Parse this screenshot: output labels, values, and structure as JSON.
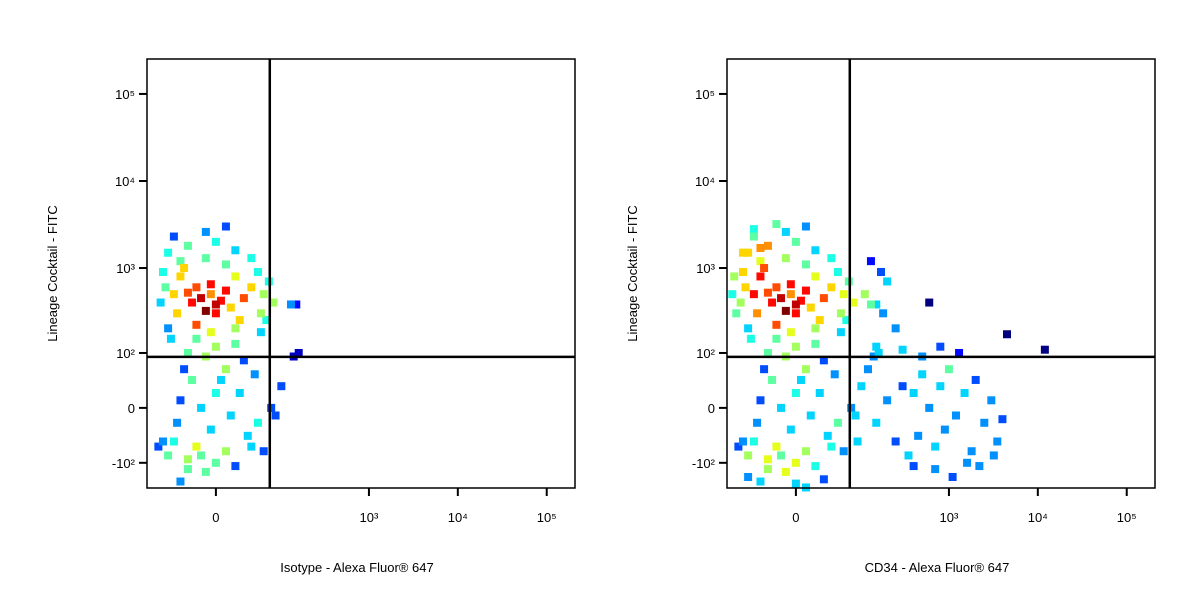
{
  "chart_data": [
    {
      "type": "scatter",
      "x_label": "Isotype - Alexa Fluor® 647",
      "y_label": "Lineage Cocktail - FITC",
      "xscale": "biexponential",
      "yscale": "biexponential",
      "xlim": [
        -110,
        208000
      ],
      "ylim": [
        -203,
        252000
      ],
      "xticks": [
        0,
        {
          "value": 1000,
          "label": "10³"
        },
        {
          "value": 10000,
          "label": "10⁴"
        },
        {
          "value": 100000,
          "label": "10⁵"
        }
      ],
      "yticks": [
        {
          "value": -100,
          "label": "-10²"
        },
        0,
        {
          "value": 100,
          "label": "10²"
        },
        {
          "value": 1000,
          "label": "10³"
        },
        {
          "value": 10000,
          "label": "10⁴"
        },
        {
          "value": 100000,
          "label": "10⁵"
        }
      ],
      "gates": {
        "x": 72,
        "y": 89
      },
      "x": [
        -15,
        -5,
        0,
        -20,
        5,
        -10,
        10,
        -25,
        -5,
        15,
        -30,
        0,
        -40,
        20,
        -45,
        30,
        -35,
        10,
        25,
        -50,
        40,
        -10,
        -20,
        20,
        -60,
        -30,
        0,
        20,
        -50,
        -10,
        10,
        -40,
        40,
        50,
        -70,
        -65,
        60,
        -75,
        55,
        70,
        80,
        130,
        150,
        65,
        -20,
        0,
        -10,
        10,
        -25,
        0,
        -15,
        15,
        -5,
        -30,
        20,
        -35,
        30,
        -40,
        25,
        -45,
        35,
        -20,
        10,
        -50,
        40,
        -30,
        0,
        20,
        -10,
        -60,
        50,
        45,
        -55,
        55,
        60,
        -5,
        5,
        -15,
        -70,
        75,
        85,
        -80,
        -40,
        -30,
        100,
        140,
        160,
        -60
      ],
      "values": [
        450,
        500,
        380,
        600,
        420,
        320,
        550,
        400,
        650,
        350,
        520,
        300,
        800,
        800,
        300,
        450,
        1000,
        1100,
        250,
        500,
        600,
        1300,
        220,
        200,
        1500,
        1800,
        2000,
        1600,
        2300,
        2600,
        3000,
        1200,
        1300,
        900,
        900,
        600,
        500,
        400,
        300,
        700,
        400,
        380,
        380,
        250,
        150,
        120,
        90,
        60,
        40,
        20,
        0,
        -10,
        -30,
        100,
        130,
        60,
        80,
        10,
        20,
        -20,
        -40,
        -60,
        -70,
        -50,
        -60,
        -90,
        -100,
        -110,
        -130,
        -80,
        -20,
        50,
        150,
        180,
        -70,
        180,
        40,
        -80,
        -50,
        0,
        -10,
        -60,
        -170,
        -120,
        30,
        90,
        100,
        200
      ]
    },
    {
      "type": "scatter",
      "x_label": "CD34 - Alexa Fluor® 647",
      "y_label": "Lineage Cocktail - FITC",
      "xscale": "biexponential",
      "yscale": "biexponential",
      "xlim": [
        -110,
        208000
      ],
      "ylim": [
        -203,
        252000
      ],
      "xticks": [
        0,
        {
          "value": 1000,
          "label": "10³"
        },
        {
          "value": 10000,
          "label": "10⁴"
        },
        {
          "value": 100000,
          "label": "10⁵"
        }
      ],
      "yticks": [
        {
          "value": -100,
          "label": "-10²"
        },
        0,
        {
          "value": 100,
          "label": "10²"
        },
        {
          "value": 1000,
          "label": "10³"
        },
        {
          "value": 10000,
          "label": "10⁴"
        },
        {
          "value": 100000,
          "label": "10⁵"
        }
      ],
      "gates": {
        "x": 72,
        "y": 89
      },
      "x": [
        -15,
        -5,
        0,
        -20,
        5,
        -10,
        10,
        -25,
        -5,
        15,
        -30,
        0,
        -40,
        20,
        -45,
        30,
        -35,
        10,
        25,
        -50,
        40,
        -10,
        -20,
        20,
        -60,
        -30,
        0,
        20,
        -50,
        -10,
        10,
        -40,
        40,
        50,
        -70,
        -65,
        60,
        -75,
        55,
        70,
        80,
        130,
        150,
        65,
        -20,
        0,
        -10,
        10,
        -25,
        0,
        -15,
        15,
        -5,
        -30,
        20,
        -35,
        30,
        -40,
        25,
        -45,
        35,
        -20,
        10,
        -50,
        40,
        -30,
        0,
        20,
        -10,
        -60,
        50,
        45,
        -55,
        55,
        60,
        -5,
        5,
        -15,
        -70,
        75,
        85,
        -80,
        -40,
        -30,
        100,
        140,
        160,
        -60,
        -90,
        -85,
        -70,
        -60,
        90,
        -50,
        -20,
        0,
        30,
        -95,
        -40,
        10,
        120,
        150,
        200,
        250,
        300,
        350,
        400,
        450,
        500,
        600,
        700,
        800,
        900,
        1000,
        1200,
        1500,
        1800,
        2000,
        2500,
        3000,
        3500,
        4000,
        1100,
        700,
        400,
        1600,
        2200,
        3200,
        500,
        800,
        300,
        150,
        4500,
        12000,
        600,
        1300,
        250,
        180,
        200,
        170,
        130,
        110
      ],
      "values": [
        450,
        500,
        380,
        600,
        420,
        320,
        550,
        400,
        650,
        350,
        520,
        300,
        800,
        800,
        300,
        450,
        1000,
        1100,
        250,
        500,
        600,
        1300,
        220,
        200,
        1500,
        1800,
        2000,
        1600,
        2300,
        2600,
        3000,
        1200,
        1300,
        900,
        900,
        600,
        500,
        400,
        300,
        700,
        400,
        380,
        380,
        250,
        150,
        120,
        90,
        60,
        40,
        20,
        0,
        -10,
        -30,
        100,
        130,
        60,
        80,
        10,
        20,
        -20,
        -40,
        -60,
        -70,
        -50,
        -60,
        -90,
        -100,
        -110,
        -130,
        -80,
        -20,
        50,
        150,
        180,
        -70,
        180,
        40,
        -80,
        -50,
        0,
        -10,
        -60,
        -170,
        -120,
        30,
        90,
        100,
        200,
        800,
        300,
        1500,
        -150,
        -50,
        2800,
        3200,
        -180,
        -160,
        500,
        1700,
        -200,
        60,
        -20,
        10,
        -50,
        30,
        -80,
        20,
        -40,
        50,
        0,
        -60,
        30,
        -30,
        60,
        -10,
        20,
        -70,
        40,
        -20,
        10,
        -50,
        -15,
        -150,
        -120,
        -110,
        -100,
        -110,
        -80,
        90,
        120,
        110,
        120,
        170,
        110,
        400,
        100,
        200,
        300,
        700,
        900,
        1200,
        500
      ]
    }
  ]
}
